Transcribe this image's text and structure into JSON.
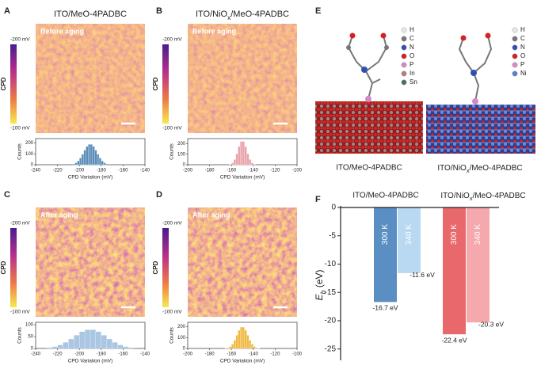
{
  "panels": [
    {
      "letter": "A",
      "title": "ITO/MeO-4PADBC",
      "image_label": "Before aging",
      "colorbar": {
        "label": "CPD",
        "top": "-200 mV",
        "bottom": "-100 mV"
      }
    },
    {
      "letter": "B",
      "title": {
        "pre": "ITO/NiO",
        "sub": "x",
        "post": "/MeO-4PADBC"
      },
      "image_label": "Before aging",
      "colorbar": {
        "label": "CPD",
        "top": "-200 mV",
        "bottom": "-100 mV"
      }
    },
    {
      "letter": "C",
      "image_label": "After aging",
      "colorbar": {
        "label": "CPD",
        "top": "-200 mV",
        "bottom": "-100 mV"
      }
    },
    {
      "letter": "D",
      "image_label": "After aging",
      "colorbar": {
        "label": "CPD",
        "top": "-200 mV",
        "bottom": "-100 mV"
      }
    },
    {
      "letter": "E",
      "left": {
        "caption": "ITO/MeO-4PADBC",
        "legend": [
          {
            "label": "H",
            "color": "#e8e8e8"
          },
          {
            "label": "C",
            "color": "#777777"
          },
          {
            "label": "N",
            "color": "#2f4fb8"
          },
          {
            "label": "O",
            "color": "#d42222"
          },
          {
            "label": "P",
            "color": "#d48ac8"
          },
          {
            "label": "In",
            "color": "#b07f80"
          },
          {
            "label": "Sn",
            "color": "#4f6d6a"
          }
        ]
      },
      "right": {
        "caption": {
          "pre": "ITO/NiO",
          "sub": "x",
          "post": "/MeO-4PADBC"
        },
        "legend": [
          {
            "label": "H",
            "color": "#e8e8e8"
          },
          {
            "label": "C",
            "color": "#777777"
          },
          {
            "label": "N",
            "color": "#2f4fb8"
          },
          {
            "label": "O",
            "color": "#d42222"
          },
          {
            "label": "P",
            "color": "#d48ac8"
          },
          {
            "label": "Ni",
            "color": "#5a7ed0"
          }
        ]
      }
    },
    {
      "letter": "F"
    }
  ],
  "chart_data": [
    {
      "type": "histogram",
      "xlabel": "CPD Variation (mV)",
      "ylabel": "Counts",
      "color": "#5b8db8",
      "bins": [
        -206,
        -204,
        -202,
        -200,
        -198,
        -196,
        -194,
        -192,
        -190,
        -188,
        -186,
        -184,
        -182,
        -180,
        -178,
        -176,
        -174
      ],
      "values": [
        8,
        18,
        35,
        62,
        96,
        134,
        168,
        187,
        187,
        168,
        134,
        96,
        62,
        35,
        18,
        8
      ],
      "xlim": [
        -240,
        -140
      ],
      "xticks": [
        -240,
        -220,
        -200,
        -180,
        -160,
        -140
      ],
      "ylim": [
        0,
        240
      ],
      "yticks": [
        0,
        100,
        200
      ]
    },
    {
      "type": "histogram",
      "xlabel": "CPD Variation (mV)",
      "ylabel": "Counts",
      "color": "#e9a2aa",
      "bins": [
        -162,
        -160,
        -158,
        -156,
        -154,
        -152,
        -150,
        -148,
        -146,
        -144,
        -142,
        -140,
        -138
      ],
      "values": [
        5,
        18,
        50,
        105,
        174,
        223,
        223,
        174,
        105,
        50,
        18,
        5
      ],
      "xlim": [
        -200,
        -100
      ],
      "xticks": [
        -200,
        -180,
        -160,
        -140,
        -120,
        -100
      ],
      "ylim": [
        0,
        250
      ],
      "yticks": [
        0,
        100,
        200
      ]
    },
    {
      "type": "histogram",
      "xlabel": "CPD Variation (mV)",
      "ylabel": "Counts",
      "color": "#a9c6e2",
      "bins": [
        -230,
        -225,
        -220,
        -215,
        -210,
        -205,
        -200,
        -195,
        -190,
        -185,
        -180,
        -175,
        -170,
        -165,
        -160,
        -155,
        -150
      ],
      "values": [
        4,
        8,
        15,
        26,
        40,
        56,
        71,
        79,
        79,
        71,
        56,
        40,
        26,
        15,
        8,
        4
      ],
      "xlim": [
        -240,
        -140
      ],
      "xticks": [
        -240,
        -220,
        -200,
        -180,
        -160,
        -140
      ],
      "ylim": [
        0,
        110
      ],
      "yticks": [
        0,
        50,
        100
      ]
    },
    {
      "type": "histogram",
      "xlabel": "CPD Variation (mV)",
      "ylabel": "Counts",
      "color": "#f0b942",
      "bins": [
        -166,
        -164,
        -162,
        -160,
        -158,
        -156,
        -154,
        -152,
        -150,
        -148,
        -146,
        -144,
        -142,
        -140,
        -138,
        -136,
        -134
      ],
      "values": [
        2,
        7,
        18,
        40,
        75,
        121,
        167,
        196,
        196,
        167,
        121,
        75,
        40,
        18,
        7,
        2
      ],
      "xlim": [
        -200,
        -100
      ],
      "xticks": [
        -200,
        -180,
        -160,
        -140,
        -120,
        -100
      ],
      "ylim": [
        0,
        240
      ],
      "yticks": [
        0,
        100,
        200
      ]
    },
    {
      "type": "bar",
      "categories": [
        "ITO/MeO-4PADBC",
        {
          "pre": "ITO/NiO",
          "sub": "x",
          "post": "/MeO-4PADBC"
        }
      ],
      "series": [
        {
          "name": "300 K",
          "colors": [
            "#5b8fc4",
            "#e8686c"
          ],
          "values": [
            -16.7,
            -22.4
          ],
          "value_labels": [
            "-16.7 eV",
            "-22.4 eV"
          ]
        },
        {
          "name": "340 K",
          "colors": [
            "#b9d9f2",
            "#f5a9ad"
          ],
          "values": [
            -11.6,
            -20.3
          ],
          "value_labels": [
            "-11.6 eV",
            "-20.3 eV"
          ]
        }
      ],
      "ylabel": {
        "main": "E",
        "sub": "b",
        "unit": " (eV)"
      },
      "ylim": [
        -27,
        0
      ],
      "yticks": [
        0,
        -5,
        -10,
        -15,
        -20,
        -25
      ]
    }
  ]
}
